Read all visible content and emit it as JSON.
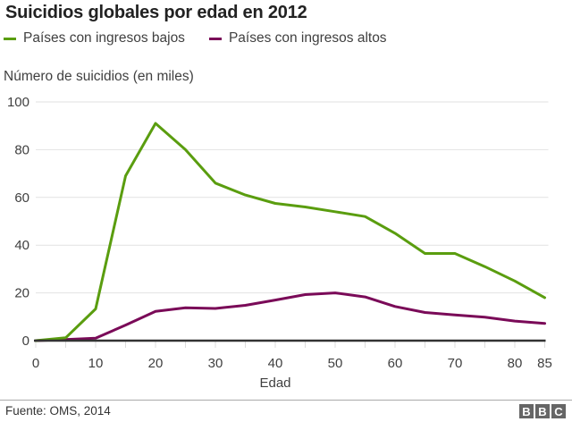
{
  "chart_data": {
    "type": "line",
    "title": "Suicidios globales por edad en 2012",
    "ylabel": "Número de suicidios (en miles)",
    "xlabel": "Edad",
    "x": [
      0,
      5,
      10,
      15,
      20,
      25,
      30,
      35,
      40,
      45,
      50,
      55,
      60,
      65,
      70,
      75,
      80,
      85
    ],
    "series": [
      {
        "name": "Países con ingresos bajos",
        "color": "#5a9d0f",
        "values": [
          0,
          1.2,
          13.3,
          69,
          91,
          80,
          66,
          61,
          57.5,
          56,
          54,
          52,
          45,
          36.5,
          36.5,
          31,
          25,
          18
        ]
      },
      {
        "name": "Países con ingresos altos",
        "color": "#7a0a58",
        "values": [
          0,
          0.5,
          1,
          6.5,
          12.3,
          13.8,
          13.5,
          14.8,
          17,
          19.3,
          20,
          18.3,
          14.3,
          11.8,
          10.8,
          9.8,
          8.2,
          7.2
        ]
      }
    ],
    "xlim": [
      0,
      85
    ],
    "ylim": [
      0,
      100
    ],
    "yticks": [
      "0",
      "20",
      "40",
      "60",
      "80",
      "100"
    ],
    "xticks": [
      "0",
      "10",
      "20",
      "30",
      "40",
      "50",
      "60",
      "70",
      "80",
      "85"
    ],
    "grid": true,
    "legend": "top"
  },
  "footer": {
    "source": "Fuente: OMS, 2014",
    "logo": [
      "B",
      "B",
      "C"
    ]
  }
}
